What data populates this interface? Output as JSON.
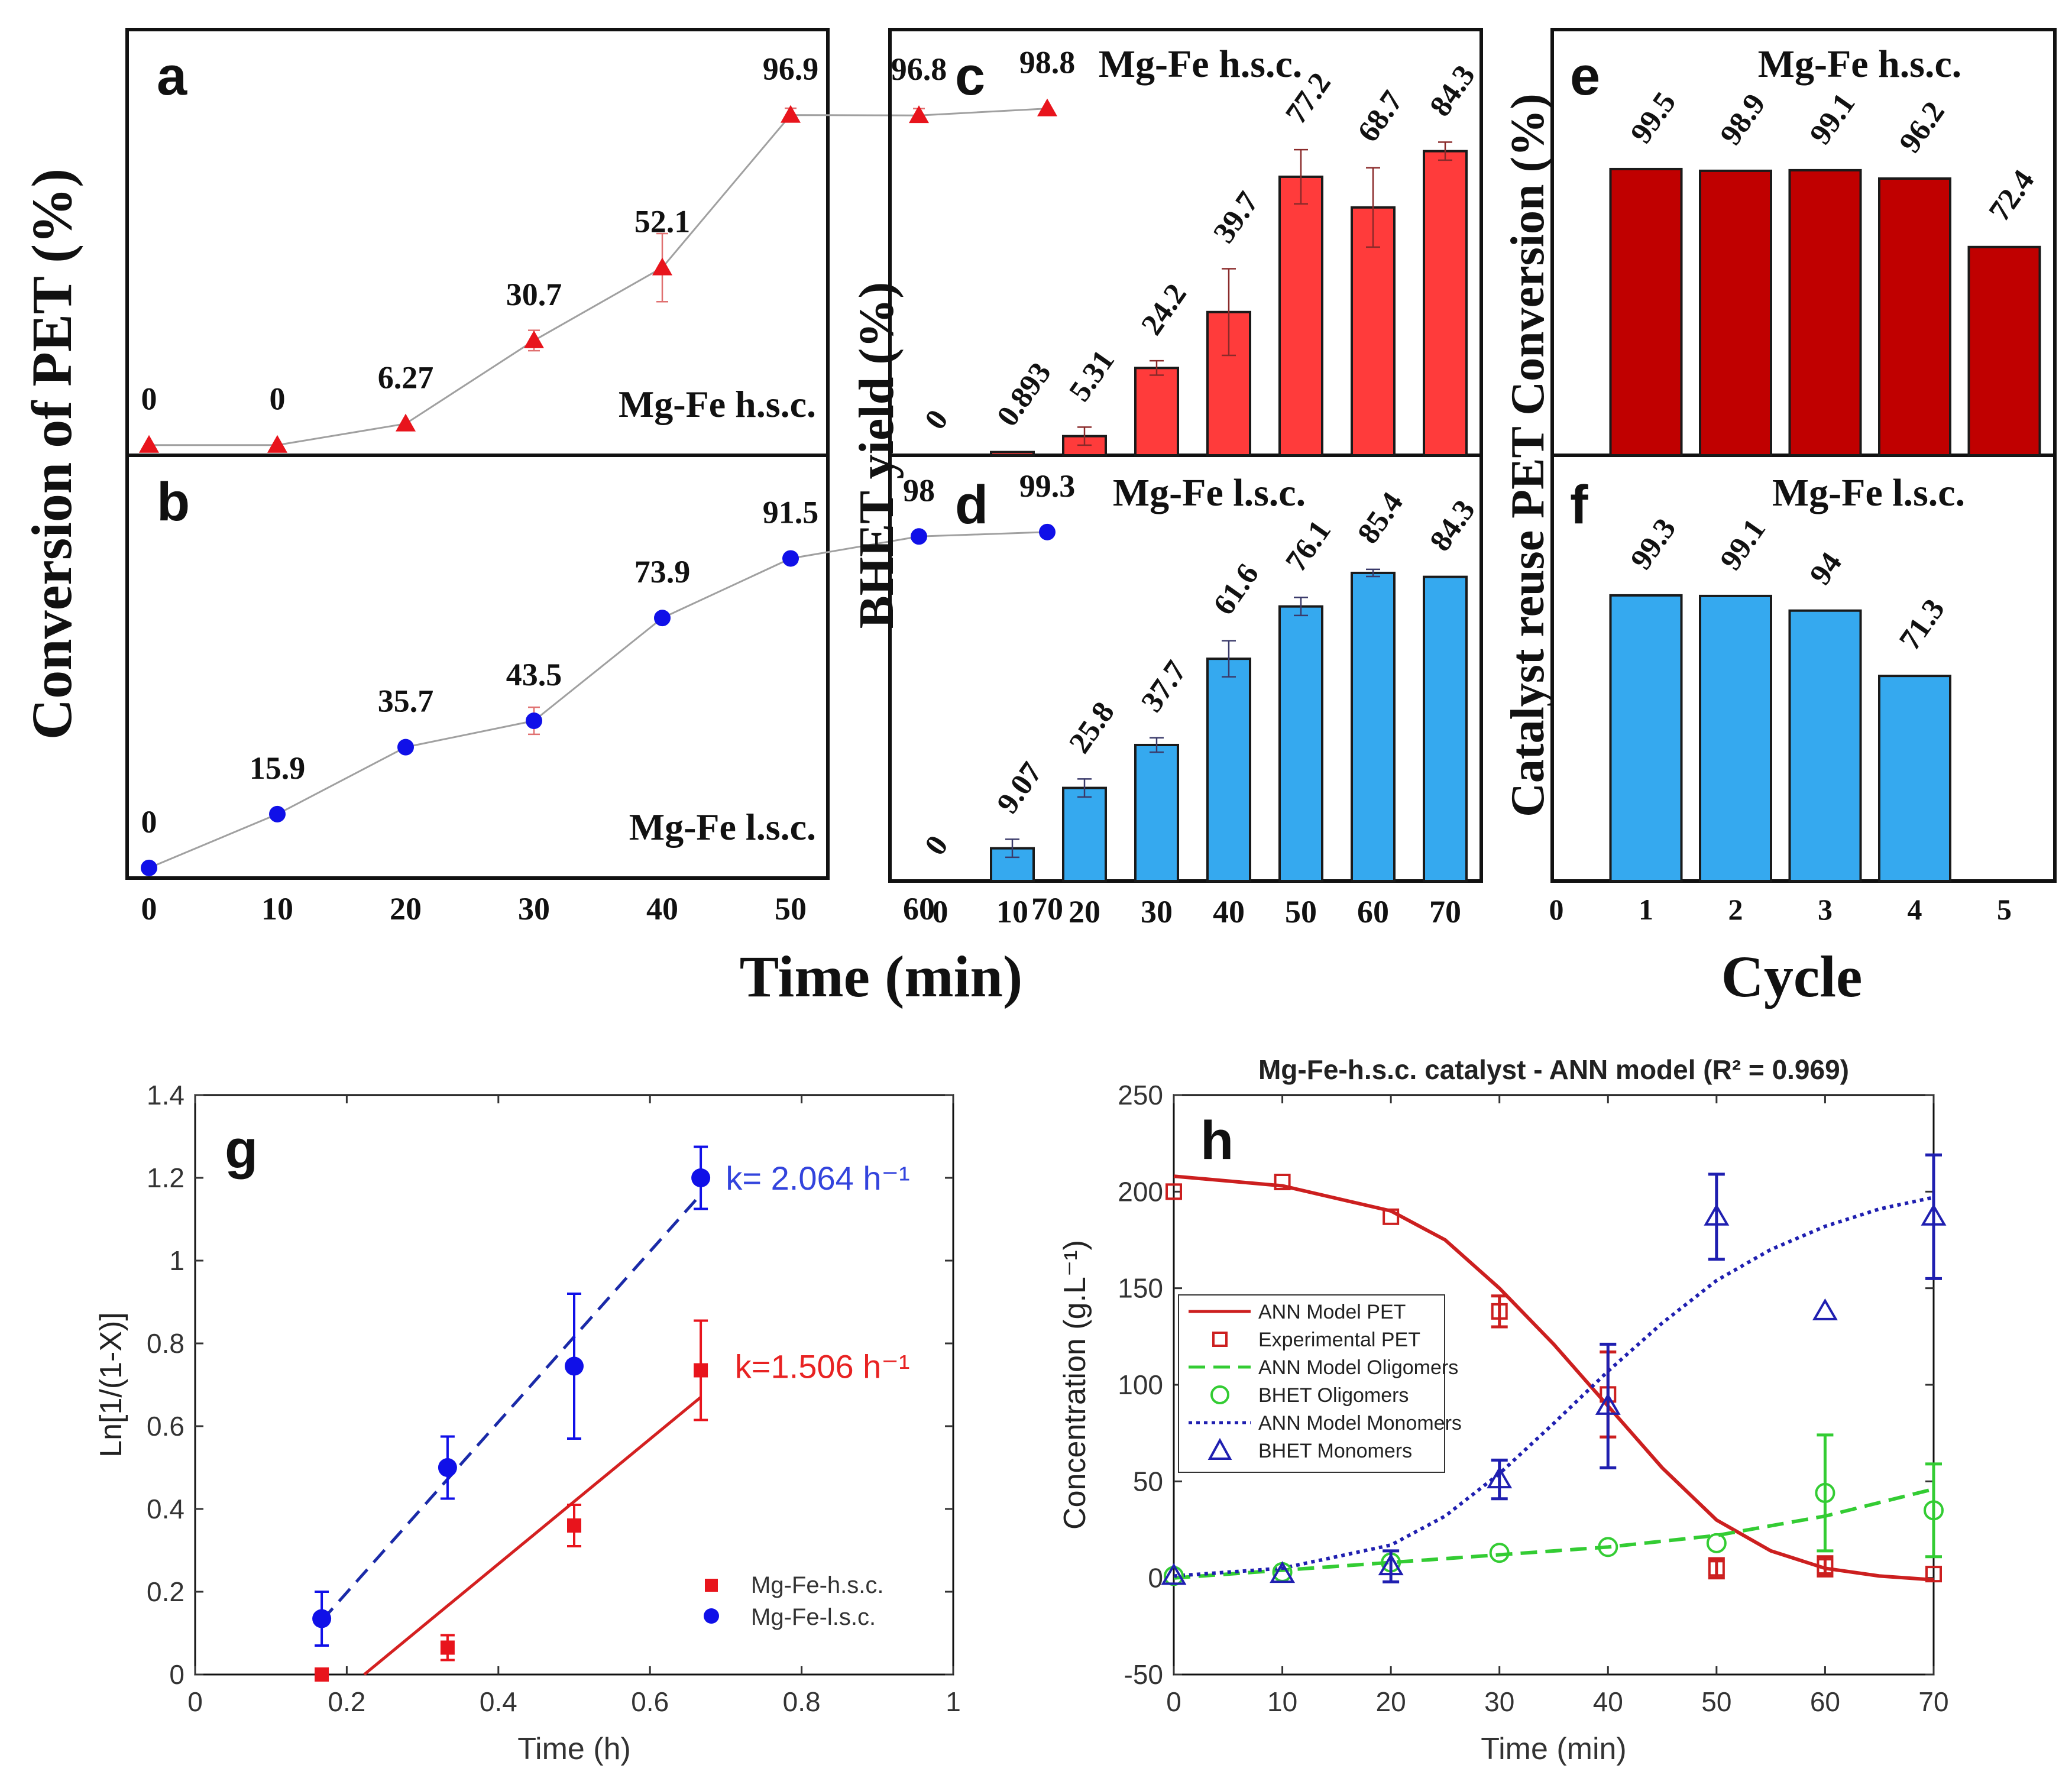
{
  "colors": {
    "red_marker": "#e8141c",
    "blue_marker": "#1010e8",
    "red_bar": "#ff3b3b",
    "blue_bar": "#35a9ef",
    "dark_red_bar": "#c00000",
    "line_gray": "#a0a0a0",
    "fit_red": "#d42020",
    "fit_blue": "#1a2aa8",
    "k_blue": "#3344dd",
    "k_red": "#e82222",
    "h_red": "#cc1f1f",
    "h_green": "#33cc33",
    "h_blue": "#1f1fb0"
  },
  "shared": {
    "time_label_top": "Time (min)",
    "cycle_label": "Cycle",
    "conversion_ylabel": "Conversion of PET (%)",
    "bhet_ylabel": "BHET yield (%)",
    "reuse_ylabel": "Catalyst reuse PET Conversion (%)",
    "time_ticks": [
      "0",
      "10",
      "20",
      "30",
      "40",
      "50",
      "60",
      "70"
    ],
    "cycle_ticks": [
      "0",
      "1",
      "2",
      "3",
      "4",
      "5"
    ]
  },
  "chart_data": [
    {
      "panel": "a",
      "type": "line",
      "series_label": "Mg-Fe h.s.c.",
      "x": [
        0,
        10,
        20,
        30,
        40,
        50,
        60,
        70
      ],
      "values": [
        0,
        0,
        6.27,
        30.7,
        52.1,
        96.9,
        96.8,
        98.8
      ],
      "labels": [
        "0",
        "0",
        "6.27",
        "30.7",
        "52.1",
        "96.9",
        "96.8",
        "98.8"
      ],
      "errors": [
        0,
        0,
        0,
        3,
        10,
        2,
        2,
        0
      ],
      "ylim": [
        -3,
        122
      ]
    },
    {
      "panel": "b",
      "type": "line",
      "series_label": "Mg-Fe l.s.c.",
      "x": [
        0,
        10,
        20,
        30,
        40,
        50,
        60,
        70
      ],
      "values": [
        0,
        15.9,
        35.7,
        43.5,
        73.9,
        91.5,
        98,
        99.3
      ],
      "labels": [
        "0",
        "15.9",
        "35.7",
        "43.5",
        "73.9",
        "91.5",
        "98",
        "99.3"
      ],
      "errors": [
        0,
        0,
        0,
        4,
        0,
        0,
        0,
        0
      ],
      "ylim": [
        -3,
        122
      ]
    },
    {
      "panel": "c",
      "type": "bar",
      "title": "Mg-Fe h.s.c.",
      "x": [
        0,
        10,
        20,
        30,
        40,
        50,
        60,
        70
      ],
      "values": [
        0,
        0.893,
        5.31,
        24.2,
        39.7,
        77.2,
        68.7,
        84.3
      ],
      "labels": [
        "0",
        "0.893",
        "5.31",
        "24.2",
        "39.7",
        "77.2",
        "68.7",
        "84.3"
      ],
      "errors": [
        0,
        0,
        2.5,
        2,
        12,
        7.5,
        11,
        2.5
      ],
      "ylim": [
        0,
        118
      ]
    },
    {
      "panel": "d",
      "type": "bar",
      "title": "Mg-Fe l.s.c.",
      "x": [
        0,
        10,
        20,
        30,
        40,
        50,
        60,
        70
      ],
      "values": [
        0,
        9.07,
        25.8,
        37.7,
        61.6,
        76.1,
        85.4,
        84.3
      ],
      "labels": [
        "0",
        "9.07",
        "25.8",
        "37.7",
        "61.6",
        "76.1",
        "85.4",
        "84.3"
      ],
      "errors": [
        0,
        2.5,
        2.5,
        2,
        5,
        2.5,
        1,
        0
      ],
      "ylim": [
        0,
        118
      ]
    },
    {
      "panel": "e",
      "type": "bar",
      "title": "Mg-Fe h.s.c.",
      "x": [
        1,
        2,
        3,
        4,
        5
      ],
      "values": [
        99.5,
        98.9,
        99.1,
        96.2,
        72.4
      ],
      "labels": [
        "99.5",
        "98.9",
        "99.1",
        "96.2",
        "72.4"
      ],
      "ylim": [
        0,
        148
      ]
    },
    {
      "panel": "f",
      "type": "bar",
      "title": "Mg-Fe l.s.c.",
      "x": [
        1,
        2,
        3,
        4
      ],
      "values": [
        99.3,
        99.1,
        94,
        71.3
      ],
      "labels": [
        "99.3",
        "99.1",
        "94",
        "71.3"
      ],
      "ylim": [
        0,
        148
      ]
    },
    {
      "panel": "g",
      "type": "scatter",
      "xlabel": "Time (h)",
      "ylabel": "Ln[1/(1-X)]",
      "xlim": [
        0,
        1
      ],
      "ylim": [
        0,
        1.4
      ],
      "xticks": [
        "0",
        "0.2",
        "0.4",
        "0.6",
        "0.8",
        "1"
      ],
      "yticks": [
        "0",
        "0.2",
        "0.4",
        "0.6",
        "0.8",
        "1",
        "1.2",
        "1.4"
      ],
      "series": [
        {
          "name": "Mg-Fe-h.s.c.",
          "marker": "square",
          "x": [
            0.167,
            0.333,
            0.5,
            0.667
          ],
          "y": [
            0,
            0.065,
            0.36,
            0.735
          ],
          "errors": [
            0,
            0.03,
            0.05,
            0.12
          ],
          "fit": {
            "x": [
              0.223,
              0.667
            ],
            "y": [
              0,
              0.67
            ]
          },
          "rate_label": "k=1.506 h⁻¹"
        },
        {
          "name": "Mg-Fe-l.s.c.",
          "marker": "circle",
          "x": [
            0.167,
            0.333,
            0.5,
            0.667
          ],
          "y": [
            0.135,
            0.5,
            0.745,
            1.2
          ],
          "errors": [
            0.065,
            0.075,
            0.175,
            0.075
          ],
          "fit": {
            "x": [
              0.167,
              0.667
            ],
            "y": [
              0.13,
              1.16
            ]
          },
          "rate_label": "k= 2.064 h⁻¹"
        }
      ]
    },
    {
      "panel": "h",
      "type": "line",
      "title": "Mg-Fe-h.s.c. catalyst - ANN model (R² = 0.969)",
      "xlabel": "Time (min)",
      "ylabel": "Concentration (g.L⁻¹)",
      "xlim": [
        0,
        70
      ],
      "ylim": [
        -50,
        250
      ],
      "xticks": [
        "0",
        "10",
        "20",
        "30",
        "40",
        "50",
        "60",
        "70"
      ],
      "yticks": [
        "-50",
        "0",
        "50",
        "100",
        "150",
        "200",
        "250"
      ],
      "series": [
        {
          "name": "ANN Model PET",
          "style": "solid",
          "x": [
            0,
            10,
            20,
            25,
            30,
            35,
            40,
            45,
            50,
            55,
            60,
            65,
            70
          ],
          "y": [
            208,
            203,
            190,
            175,
            150,
            121,
            89,
            57,
            30,
            14,
            5,
            1,
            -1
          ]
        },
        {
          "name": "Experimental PET",
          "marker": "square",
          "x": [
            0,
            10,
            20,
            30,
            40,
            50,
            60,
            70
          ],
          "y": [
            200,
            205,
            187,
            138,
            95,
            5,
            6,
            2
          ],
          "errors": [
            0,
            0,
            0,
            8,
            22,
            5,
            5,
            0
          ]
        },
        {
          "name": "ANN Model Oligomers",
          "style": "dashed",
          "x": [
            0,
            10,
            20,
            30,
            40,
            50,
            60,
            70
          ],
          "y": [
            0,
            4,
            8,
            12,
            16,
            22,
            32,
            46
          ]
        },
        {
          "name": "BHET Oligomers",
          "marker": "circle",
          "x": [
            0,
            10,
            20,
            30,
            40,
            50,
            60,
            70
          ],
          "y": [
            1,
            3,
            8,
            13,
            16,
            18,
            44,
            35
          ],
          "errors": [
            0,
            0,
            0,
            0,
            0,
            0,
            30,
            24
          ]
        },
        {
          "name": "ANN Model Monomers",
          "style": "dotted",
          "x": [
            0,
            10,
            20,
            25,
            30,
            35,
            40,
            45,
            50,
            55,
            60,
            65,
            70
          ],
          "y": [
            1,
            5,
            17,
            32,
            54,
            80,
            107,
            132,
            154,
            170,
            182,
            191,
            197
          ]
        },
        {
          "name": "BHET Monomers",
          "marker": "triangle",
          "x": [
            0,
            10,
            20,
            30,
            40,
            50,
            60,
            70
          ],
          "y": [
            1,
            2,
            6,
            51,
            89,
            187,
            138,
            187
          ],
          "errors": [
            0,
            0,
            8,
            10,
            32,
            22,
            0,
            32
          ]
        }
      ]
    }
  ]
}
